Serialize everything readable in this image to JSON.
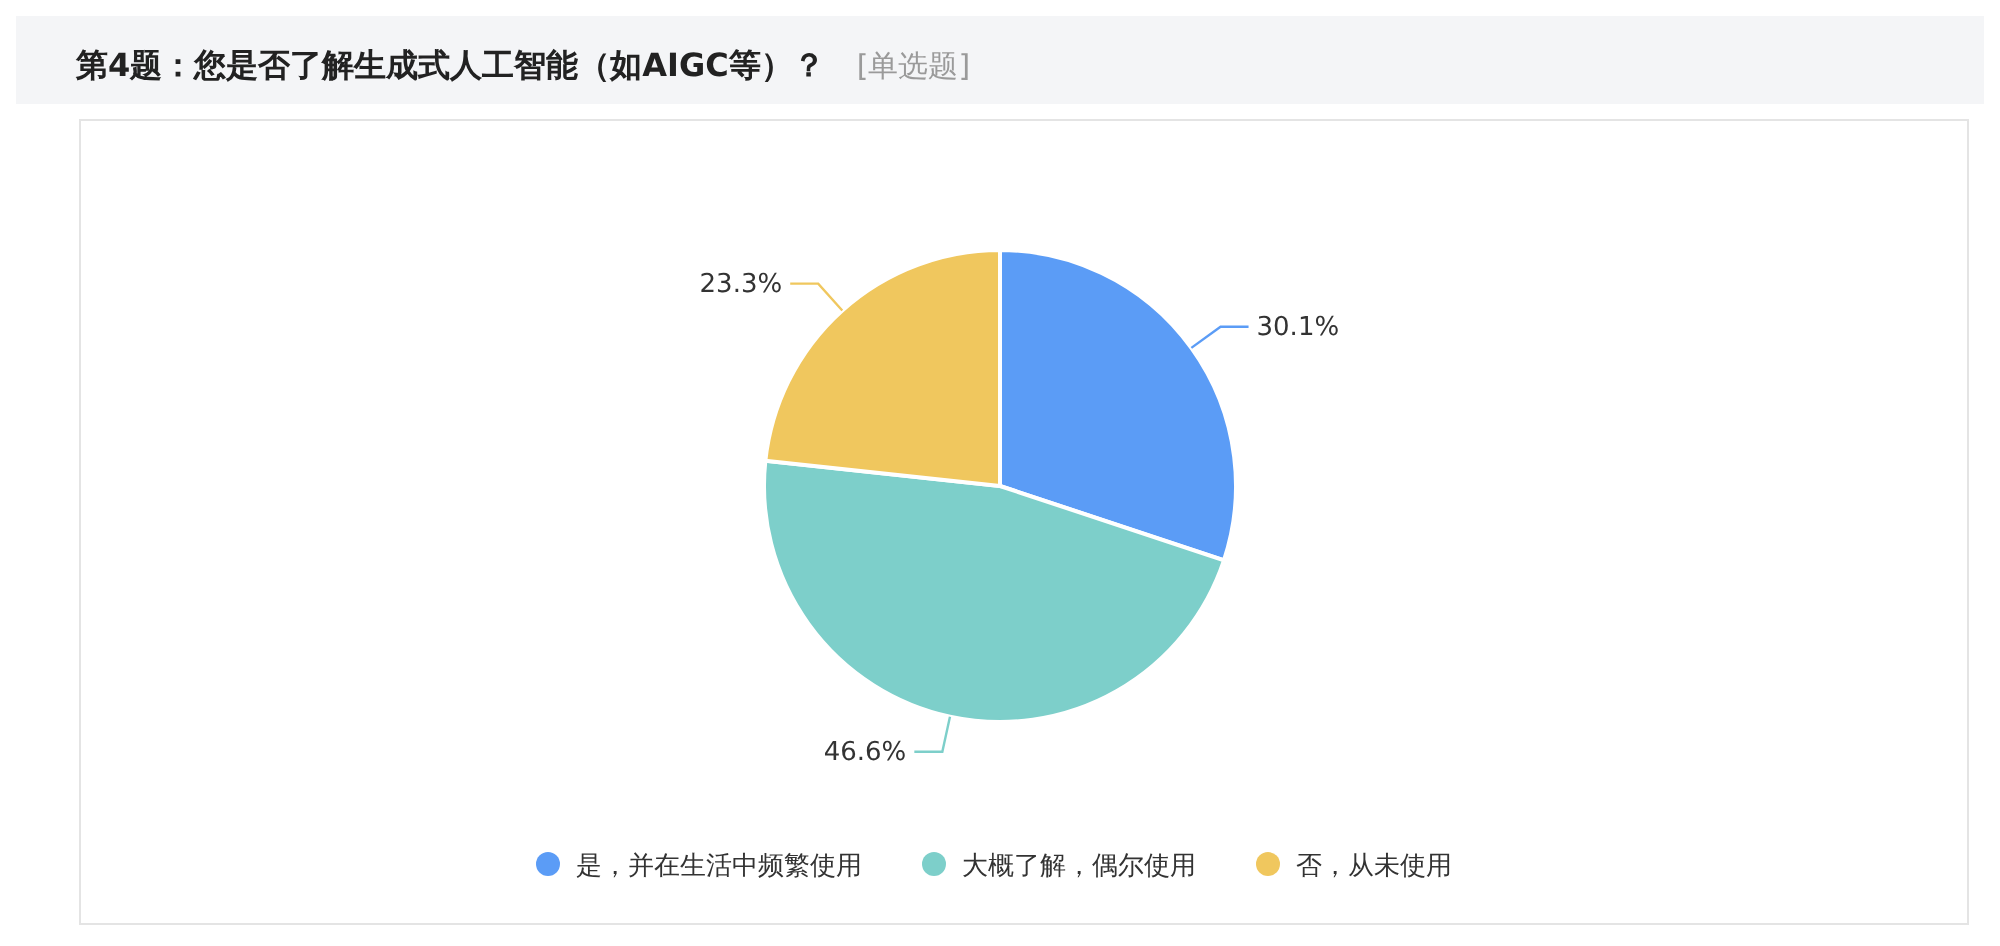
{
  "chart_data": {
    "type": "pie",
    "title": "第4题：您是否了解生成式人工智能（如AIGC等）？",
    "subtitle": "[单选题]",
    "categories": [
      "是，并在生活中频繁使用",
      "大概了解，偶尔使用",
      "否，从未使用"
    ],
    "values": [
      30.1,
      46.6,
      23.3
    ],
    "colors": [
      "#5b9cf6",
      "#7dcfca",
      "#f0c75e"
    ],
    "value_labels": [
      "30.1%",
      "46.6%",
      "23.3%"
    ],
    "legend": "bottom"
  }
}
